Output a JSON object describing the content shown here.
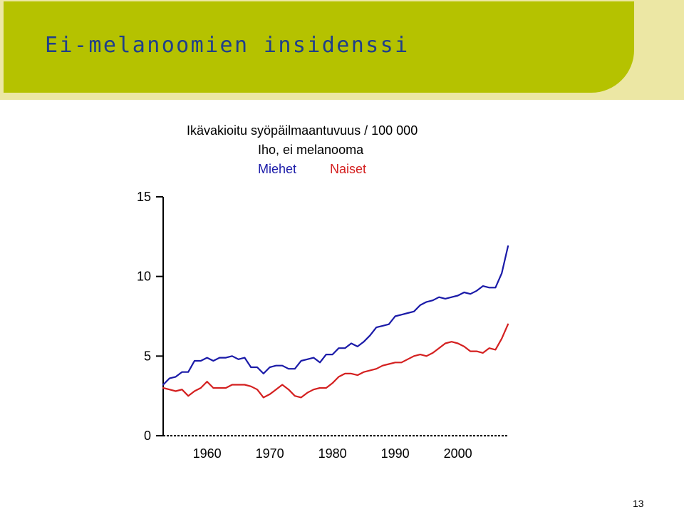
{
  "slide": {
    "title": "Ei-melanoomien insidenssi",
    "page_number": "13",
    "colors": {
      "header": "#b5c200",
      "header_light": "#ece7a4",
      "title": "#1f3f8a"
    }
  },
  "chart_data": {
    "type": "line",
    "title": "Ikävakioitu syöpäilmaantuvuus / 100 000",
    "subtitle": "Iho, ei melanooma",
    "xlabel": "",
    "ylabel": "",
    "xlim": [
      1953,
      2008
    ],
    "ylim": [
      0,
      15
    ],
    "x_ticks": [
      1960,
      1970,
      1980,
      1990,
      2000
    ],
    "x_tick_labels": [
      "1960",
      "1970",
      "1980",
      "1990",
      "2000"
    ],
    "y_ticks": [
      0,
      5,
      10,
      15
    ],
    "y_tick_labels": [
      "0",
      "5",
      "10",
      "15"
    ],
    "grid": false,
    "legend_position": "top",
    "x": [
      1953,
      1954,
      1955,
      1956,
      1957,
      1958,
      1959,
      1960,
      1961,
      1962,
      1963,
      1964,
      1965,
      1966,
      1967,
      1968,
      1969,
      1970,
      1971,
      1972,
      1973,
      1974,
      1975,
      1976,
      1977,
      1978,
      1979,
      1980,
      1981,
      1982,
      1983,
      1984,
      1985,
      1986,
      1987,
      1988,
      1989,
      1990,
      1991,
      1992,
      1993,
      1994,
      1995,
      1996,
      1997,
      1998,
      1999,
      2000,
      2001,
      2002,
      2003,
      2004,
      2005,
      2006,
      2007,
      2008
    ],
    "series": [
      {
        "name": "Miehet",
        "color": "#1a1aa8",
        "values": [
          3.2,
          3.6,
          3.7,
          4.0,
          4.0,
          4.7,
          4.7,
          4.9,
          4.7,
          4.9,
          4.9,
          5.0,
          4.8,
          4.9,
          4.3,
          4.3,
          3.9,
          4.3,
          4.4,
          4.4,
          4.2,
          4.2,
          4.7,
          4.8,
          4.9,
          4.6,
          5.1,
          5.1,
          5.5,
          5.5,
          5.8,
          5.6,
          5.9,
          6.3,
          6.8,
          6.9,
          7.0,
          7.5,
          7.6,
          7.7,
          7.8,
          8.2,
          8.4,
          8.5,
          8.7,
          8.6,
          8.7,
          8.8,
          9.0,
          8.9,
          9.1,
          9.4,
          9.3,
          9.3,
          10.2,
          11.9
        ]
      },
      {
        "name": "Naiset",
        "color": "#d42020",
        "values": [
          3.0,
          2.9,
          2.8,
          2.9,
          2.5,
          2.8,
          3.0,
          3.4,
          3.0,
          3.0,
          3.0,
          3.2,
          3.2,
          3.2,
          3.1,
          2.9,
          2.4,
          2.6,
          2.9,
          3.2,
          2.9,
          2.5,
          2.4,
          2.7,
          2.9,
          3.0,
          3.0,
          3.3,
          3.7,
          3.9,
          3.9,
          3.8,
          4.0,
          4.1,
          4.2,
          4.4,
          4.5,
          4.6,
          4.6,
          4.8,
          5.0,
          5.1,
          5.0,
          5.2,
          5.5,
          5.8,
          5.9,
          5.8,
          5.6,
          5.3,
          5.3,
          5.2,
          5.5,
          5.4,
          6.1,
          7.0
        ]
      }
    ]
  }
}
